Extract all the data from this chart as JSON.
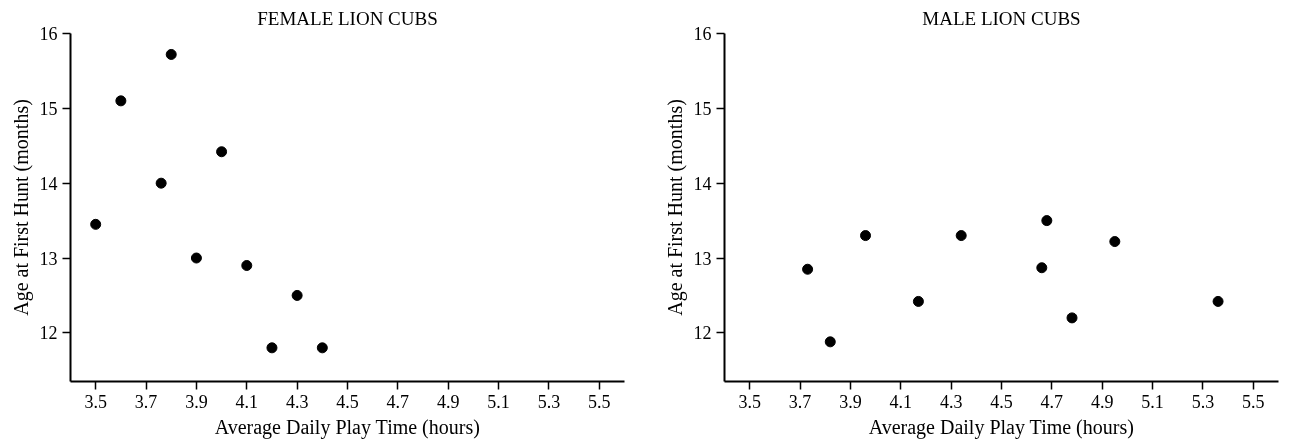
{
  "chart_data": [
    {
      "type": "scatter",
      "title": "FEMALE LION CUBS",
      "xlabel": "Average Daily Play Time (hours)",
      "ylabel": "Age at First Hunt (months)",
      "x": [
        3.5,
        3.6,
        3.76,
        3.8,
        3.9,
        4.0,
        4.1,
        4.2,
        4.3,
        4.4
      ],
      "values": [
        13.45,
        15.1,
        14.0,
        15.72,
        13.0,
        14.42,
        12.9,
        11.8,
        12.5,
        11.8
      ],
      "color": "#000000",
      "marker": "circle",
      "grid": false,
      "xlim": [
        3.4,
        5.6
      ],
      "ylim": [
        11.35,
        16.0
      ],
      "xticks": [
        3.5,
        3.7,
        3.9,
        4.1,
        4.3,
        4.5,
        4.7,
        4.9,
        5.1,
        5.3,
        5.5
      ],
      "yticks": [
        12,
        13,
        14,
        15,
        16
      ]
    },
    {
      "type": "scatter",
      "title": "MALE LION CUBS",
      "xlabel": "Average Daily Play Time (hours)",
      "ylabel": "Age at First Hunt (months)",
      "x": [
        3.73,
        3.82,
        3.96,
        4.17,
        4.34,
        4.66,
        4.68,
        4.78,
        4.95,
        5.36
      ],
      "values": [
        12.85,
        11.88,
        13.3,
        12.42,
        13.3,
        12.87,
        13.5,
        12.2,
        13.22,
        12.42
      ],
      "color": "#000000",
      "marker": "circle",
      "grid": false,
      "xlim": [
        3.4,
        5.6
      ],
      "ylim": [
        11.35,
        16.0
      ],
      "xticks": [
        3.5,
        3.7,
        3.9,
        4.1,
        4.3,
        4.5,
        4.7,
        4.9,
        5.1,
        5.3,
        5.5
      ],
      "yticks": [
        12,
        13,
        14,
        15,
        16
      ]
    }
  ]
}
